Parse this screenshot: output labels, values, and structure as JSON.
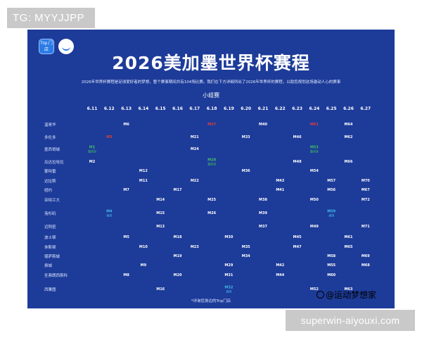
{
  "watermark_top": "TG: MYYJJPP",
  "watermark_bottom": "superwin-aiyouxi.com",
  "brand_watermark": "@运动梦想家",
  "poster": {
    "logo_text": "Trip.门店",
    "title": "2026美加墨世界杯赛程",
    "intro": "2026年世界杯赛程是足球爱好者的梦想，整个赛事期间共有104场比赛。我们在下方详细列出了2026年世界杯的赛程，以助您规划这场激动人心的赛事",
    "group_title": "小组赛",
    "footnote": "*详询您身边的Trip门店"
  },
  "schedule": {
    "dates": [
      "6.11",
      "6.12",
      "6.13",
      "6.14",
      "6.15",
      "6.16",
      "6.17",
      "6.18",
      "6.19",
      "6.20",
      "6.21",
      "6.22",
      "6.23",
      "6.24",
      "6.25",
      "6.26",
      "6.27"
    ],
    "cities": [
      "温哥华",
      "多伦多",
      "墨西哥城",
      "瓜达拉哈拉",
      "蒙特雷",
      "达拉斯",
      "纽约",
      "亚特兰大",
      "洛杉矶",
      "迈阿密",
      "波士顿",
      "休斯顿",
      "堪萨斯城",
      "费城",
      "圣弗朗西斯科",
      "西雅图"
    ],
    "matches": [
      {
        "city": 0,
        "date": 2,
        "code": "M6"
      },
      {
        "city": 0,
        "date": 7,
        "code": "M27",
        "color": "red"
      },
      {
        "city": 0,
        "date": 10,
        "code": "M40"
      },
      {
        "city": 0,
        "date": 13,
        "code": "M51",
        "color": "red"
      },
      {
        "city": 0,
        "date": 15,
        "code": "M64"
      },
      {
        "city": 1,
        "date": 1,
        "code": "M3",
        "color": "red"
      },
      {
        "city": 1,
        "date": 6,
        "code": "M21"
      },
      {
        "city": 1,
        "date": 9,
        "code": "M33"
      },
      {
        "city": 1,
        "date": 12,
        "code": "M46"
      },
      {
        "city": 1,
        "date": 15,
        "code": "M62"
      },
      {
        "city": 2,
        "date": 0,
        "code": "M1",
        "color": "green",
        "sub": "墨西哥"
      },
      {
        "city": 2,
        "date": 6,
        "code": "M24"
      },
      {
        "city": 2,
        "date": 13,
        "code": "M53",
        "color": "green",
        "sub": "墨西哥"
      },
      {
        "city": 3,
        "date": 0,
        "code": "M2"
      },
      {
        "city": 3,
        "date": 7,
        "code": "M28",
        "color": "green",
        "sub": "墨西哥"
      },
      {
        "city": 3,
        "date": 12,
        "code": "M48"
      },
      {
        "city": 3,
        "date": 15,
        "code": "M66"
      },
      {
        "city": 4,
        "date": 3,
        "code": "M12"
      },
      {
        "city": 4,
        "date": 9,
        "code": "M36"
      },
      {
        "city": 4,
        "date": 13,
        "code": "M54"
      },
      {
        "city": 5,
        "date": 3,
        "code": "M11"
      },
      {
        "city": 5,
        "date": 6,
        "code": "M22"
      },
      {
        "city": 5,
        "date": 11,
        "code": "M43"
      },
      {
        "city": 5,
        "date": 14,
        "code": "M57"
      },
      {
        "city": 5,
        "date": 16,
        "code": "M70"
      },
      {
        "city": 6,
        "date": 2,
        "code": "M7"
      },
      {
        "city": 6,
        "date": 5,
        "code": "M17"
      },
      {
        "city": 6,
        "date": 11,
        "code": "M41"
      },
      {
        "city": 6,
        "date": 14,
        "code": "M56"
      },
      {
        "city": 6,
        "date": 16,
        "code": "M67"
      },
      {
        "city": 7,
        "date": 4,
        "code": "M14"
      },
      {
        "city": 7,
        "date": 7,
        "code": "M25"
      },
      {
        "city": 7,
        "date": 10,
        "code": "M38"
      },
      {
        "city": 7,
        "date": 13,
        "code": "M50"
      },
      {
        "city": 7,
        "date": 16,
        "code": "M72"
      },
      {
        "city": 8,
        "date": 1,
        "code": "M4",
        "color": "cyan",
        "sub": "美国"
      },
      {
        "city": 8,
        "date": 4,
        "code": "M15"
      },
      {
        "city": 8,
        "date": 7,
        "code": "M26"
      },
      {
        "city": 8,
        "date": 10,
        "code": "M39"
      },
      {
        "city": 8,
        "date": 14,
        "code": "M59",
        "color": "cyan",
        "sub": "美国"
      },
      {
        "city": 9,
        "date": 4,
        "code": "M13"
      },
      {
        "city": 9,
        "date": 10,
        "code": "M37"
      },
      {
        "city": 9,
        "date": 13,
        "code": "M49"
      },
      {
        "city": 9,
        "date": 16,
        "code": "M71"
      },
      {
        "city": 10,
        "date": 2,
        "code": "M5"
      },
      {
        "city": 10,
        "date": 5,
        "code": "M18"
      },
      {
        "city": 10,
        "date": 8,
        "code": "M30"
      },
      {
        "city": 10,
        "date": 12,
        "code": "M45"
      },
      {
        "city": 10,
        "date": 15,
        "code": "M61"
      },
      {
        "city": 11,
        "date": 3,
        "code": "M10"
      },
      {
        "city": 11,
        "date": 6,
        "code": "M23"
      },
      {
        "city": 11,
        "date": 9,
        "code": "M35"
      },
      {
        "city": 11,
        "date": 12,
        "code": "M47"
      },
      {
        "city": 11,
        "date": 15,
        "code": "M65"
      },
      {
        "city": 12,
        "date": 5,
        "code": "M19"
      },
      {
        "city": 12,
        "date": 9,
        "code": "M34"
      },
      {
        "city": 12,
        "date": 14,
        "code": "M58"
      },
      {
        "city": 12,
        "date": 16,
        "code": "M69"
      },
      {
        "city": 13,
        "date": 3,
        "code": "M9"
      },
      {
        "city": 13,
        "date": 8,
        "code": "M29"
      },
      {
        "city": 13,
        "date": 11,
        "code": "M42"
      },
      {
        "city": 13,
        "date": 14,
        "code": "M55"
      },
      {
        "city": 13,
        "date": 16,
        "code": "M68"
      },
      {
        "city": 14,
        "date": 2,
        "code": "M8"
      },
      {
        "city": 14,
        "date": 5,
        "code": "M20"
      },
      {
        "city": 14,
        "date": 8,
        "code": "M31"
      },
      {
        "city": 14,
        "date": 11,
        "code": "M44"
      },
      {
        "city": 14,
        "date": 14,
        "code": "M60"
      },
      {
        "city": 15,
        "date": 4,
        "code": "M16"
      },
      {
        "city": 15,
        "date": 8,
        "code": "M32",
        "color": "cyan",
        "sub": "美国"
      },
      {
        "city": 15,
        "date": 13,
        "code": "M52"
      },
      {
        "city": 15,
        "date": 15,
        "code": "M63"
      }
    ]
  },
  "colors": {
    "poster_bg": "#1d3b99",
    "red_match": "#e0403a",
    "green_match": "#40c060",
    "cyan_match": "#40b8e8"
  }
}
